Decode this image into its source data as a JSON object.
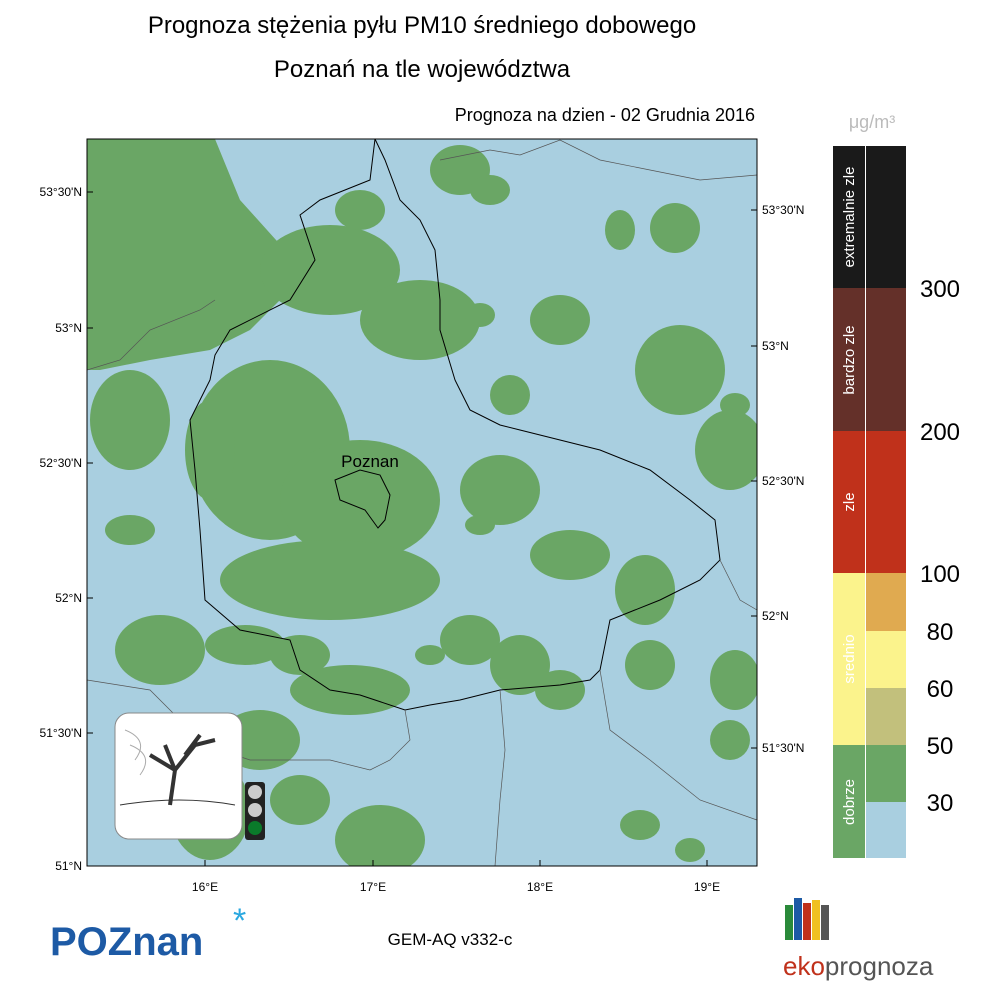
{
  "header": {
    "title": "Prognoza stężenia pyłu PM10 średniego dobowego",
    "subtitle": "Poznań na tle województwa",
    "date": "Prognoza na dzien -  02 Grudnia 2016"
  },
  "map": {
    "city": "Poznan",
    "lat_left": [
      "53°30'N",
      "53°N",
      "52°30'N",
      "52°N",
      "51°30'N",
      "51°N"
    ],
    "lat_right": [
      "53°30'N",
      "53°N",
      "52°30'N",
      "52°N",
      "51°30'N"
    ],
    "lon_bottom": [
      "16°E",
      "17°E",
      "18°E",
      "19°E"
    ]
  },
  "legend": {
    "unit": "μg/m³",
    "categories": [
      "extremalnie zle",
      "bardzo zle",
      "zle",
      "srednio",
      "dobrze"
    ],
    "levels": [
      300,
      200,
      100,
      80,
      60,
      50,
      30
    ]
  },
  "footer": {
    "logo_left": "POZnan",
    "model": "GEM-AQ v332-c",
    "logo_right_a": "eko",
    "logo_right_b": "prognoza"
  }
}
